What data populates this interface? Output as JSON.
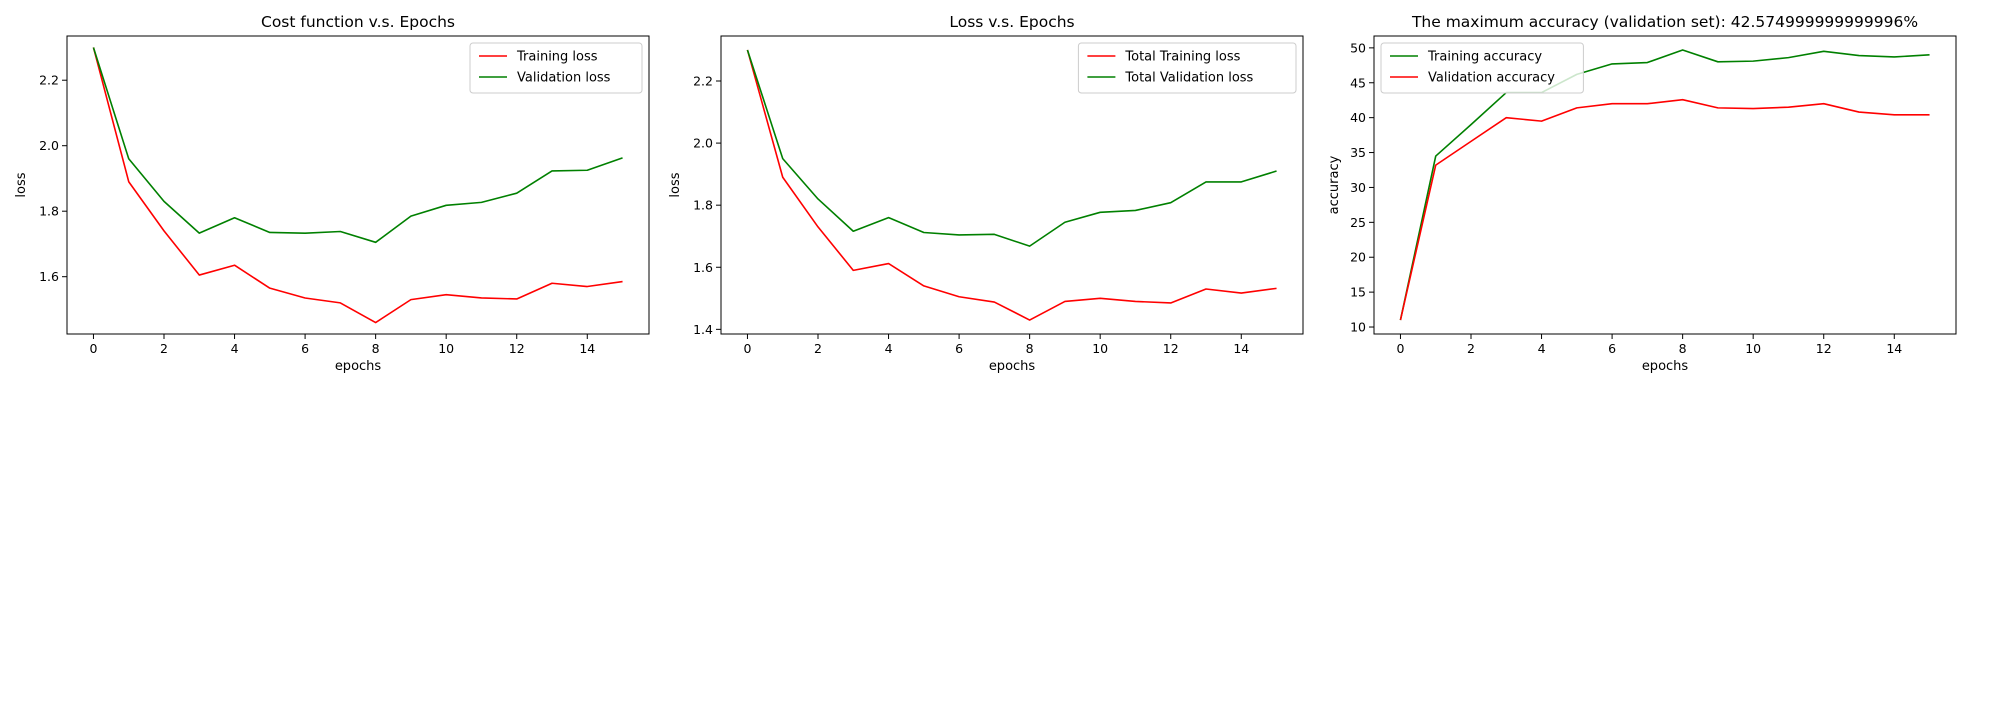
{
  "figure": {
    "background": "#ffffff"
  },
  "chart_data": [
    {
      "type": "line",
      "title": "Cost function v.s. Epochs",
      "xlabel": "epochs",
      "ylabel": "loss",
      "xlim": [
        -0.75,
        15.75
      ],
      "ylim": [
        1.425,
        2.335
      ],
      "xticks": [
        0,
        2,
        4,
        6,
        8,
        10,
        12,
        14
      ],
      "yticks": [
        1.6,
        1.8,
        2.0,
        2.2
      ],
      "ytick_labels": [
        "1.6",
        "1.8",
        "2.0",
        "2.2"
      ],
      "grid": false,
      "legend": {
        "position": "top-right"
      },
      "x": [
        0,
        1,
        2,
        3,
        4,
        5,
        6,
        7,
        8,
        9,
        10,
        11,
        12,
        13,
        14,
        15
      ],
      "series": [
        {
          "name": "Training loss",
          "color": "#ff0000",
          "values": [
            2.3,
            1.89,
            1.74,
            1.605,
            1.635,
            1.565,
            1.535,
            1.52,
            1.46,
            1.53,
            1.545,
            1.535,
            1.532,
            1.58,
            1.57,
            1.585
          ]
        },
        {
          "name": "Validation loss",
          "color": "#008000",
          "values": [
            2.3,
            1.96,
            1.83,
            1.733,
            1.78,
            1.735,
            1.733,
            1.738,
            1.705,
            1.785,
            1.818,
            1.827,
            1.855,
            1.923,
            1.925,
            1.963
          ]
        }
      ]
    },
    {
      "type": "line",
      "title": "Loss v.s. Epochs",
      "xlabel": "epochs",
      "ylabel": "loss",
      "xlim": [
        -0.75,
        15.75
      ],
      "ylim": [
        1.385,
        2.345
      ],
      "xticks": [
        0,
        2,
        4,
        6,
        8,
        10,
        12,
        14
      ],
      "yticks": [
        1.4,
        1.6,
        1.8,
        2.0,
        2.2
      ],
      "ytick_labels": [
        "1.4",
        "1.6",
        "1.8",
        "2.0",
        "2.2"
      ],
      "grid": false,
      "legend": {
        "position": "top-right"
      },
      "x": [
        0,
        1,
        2,
        3,
        4,
        5,
        6,
        7,
        8,
        9,
        10,
        11,
        12,
        13,
        14,
        15
      ],
      "series": [
        {
          "name": "Total Training loss",
          "color": "#ff0000",
          "values": [
            2.3,
            1.89,
            1.73,
            1.59,
            1.612,
            1.54,
            1.505,
            1.488,
            1.43,
            1.49,
            1.5,
            1.49,
            1.485,
            1.53,
            1.517,
            1.532
          ]
        },
        {
          "name": "Total Validation loss",
          "color": "#008000",
          "values": [
            2.3,
            1.95,
            1.82,
            1.716,
            1.76,
            1.712,
            1.704,
            1.706,
            1.668,
            1.745,
            1.777,
            1.783,
            1.808,
            1.875,
            1.875,
            1.91
          ]
        }
      ]
    },
    {
      "type": "line",
      "title": "The maximum accuracy (validation set): 42.574999999999996%",
      "xlabel": "epochs",
      "ylabel": "accuracy",
      "xlim": [
        -0.75,
        15.75
      ],
      "ylim": [
        9.0,
        51.7
      ],
      "xticks": [
        0,
        2,
        4,
        6,
        8,
        10,
        12,
        14
      ],
      "yticks": [
        10,
        15,
        20,
        25,
        30,
        35,
        40,
        45,
        50
      ],
      "ytick_labels": [
        "10",
        "15",
        "20",
        "25",
        "30",
        "35",
        "40",
        "45",
        "50"
      ],
      "grid": false,
      "legend": {
        "position": "top-left"
      },
      "x": [
        0,
        1,
        2,
        3,
        4,
        5,
        6,
        7,
        8,
        9,
        10,
        11,
        12,
        13,
        14,
        15
      ],
      "series": [
        {
          "name": "Training accuracy",
          "color": "#008000",
          "values": [
            11.0,
            34.5,
            39.0,
            43.6,
            43.6,
            46.2,
            47.7,
            47.9,
            49.7,
            48.0,
            48.1,
            48.6,
            49.5,
            48.9,
            48.7,
            49.0
          ]
        },
        {
          "name": "Validation accuracy",
          "color": "#ff0000",
          "values": [
            11.0,
            33.2,
            36.6,
            40.0,
            39.5,
            41.4,
            42.0,
            42.0,
            42.575,
            41.4,
            41.3,
            41.5,
            42.0,
            40.8,
            40.4,
            40.4
          ]
        }
      ]
    }
  ]
}
